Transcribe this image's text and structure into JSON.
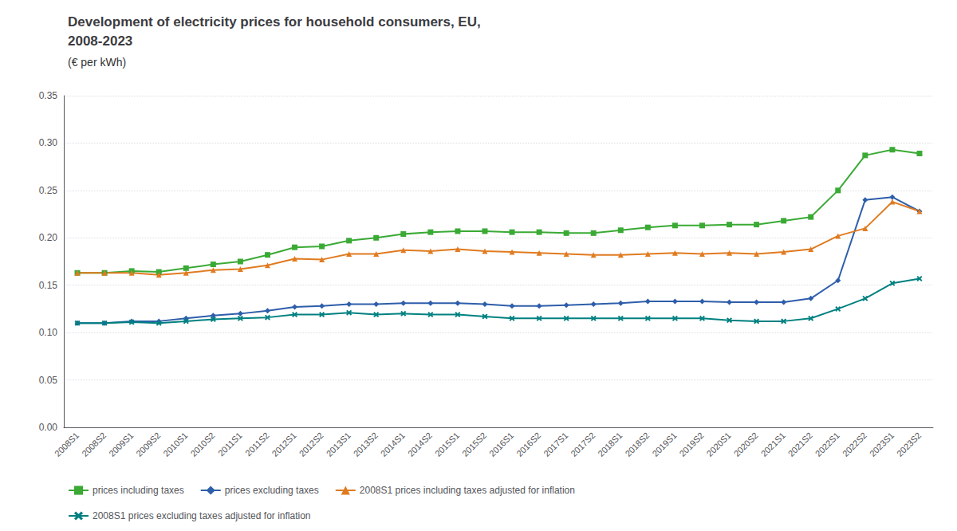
{
  "chart_data": {
    "type": "line",
    "title": "Development of electricity prices for household consumers, EU,\n2008-2023",
    "subtitle": "(€ per kWh)",
    "categories": [
      "2008S1",
      "2008S2",
      "2009S1",
      "2009S2",
      "2010S1",
      "2010S2",
      "2011S1",
      "2011S2",
      "2012S1",
      "2012S2",
      "2013S1",
      "2013S2",
      "2014S1",
      "2014S2",
      "2015S1",
      "2015S2",
      "2016S1",
      "2016S2",
      "2017S1",
      "2017S2",
      "2018S1",
      "2018S2",
      "2019S1",
      "2019S2",
      "2020S1",
      "2020S2",
      "2021S1",
      "2021S2",
      "2022S1",
      "2022S2",
      "2023S1",
      "2023S2"
    ],
    "series": [
      {
        "name": "prices including taxes",
        "color": "#3aaa35",
        "marker": "square",
        "values": [
          0.163,
          0.163,
          0.165,
          0.164,
          0.168,
          0.172,
          0.175,
          0.182,
          0.19,
          0.191,
          0.197,
          0.2,
          0.204,
          0.206,
          0.207,
          0.207,
          0.206,
          0.206,
          0.205,
          0.205,
          0.208,
          0.211,
          0.213,
          0.213,
          0.214,
          0.214,
          0.218,
          0.222,
          0.25,
          0.287,
          0.293,
          0.289
        ]
      },
      {
        "name": "prices excluding taxes",
        "color": "#2e5eaa",
        "marker": "diamond",
        "values": [
          0.11,
          0.11,
          0.112,
          0.112,
          0.115,
          0.118,
          0.12,
          0.123,
          0.127,
          0.128,
          0.13,
          0.13,
          0.131,
          0.131,
          0.131,
          0.13,
          0.128,
          0.128,
          0.129,
          0.13,
          0.131,
          0.133,
          0.133,
          0.133,
          0.132,
          0.132,
          0.132,
          0.136,
          0.155,
          0.24,
          0.243,
          0.228
        ]
      },
      {
        "name": "2008S1 prices including taxes adjusted for inflation",
        "color": "#e07b20",
        "marker": "triangle",
        "values": [
          0.163,
          0.163,
          0.163,
          0.161,
          0.163,
          0.166,
          0.167,
          0.171,
          0.178,
          0.177,
          0.183,
          0.183,
          0.187,
          0.186,
          0.188,
          0.186,
          0.185,
          0.184,
          0.183,
          0.182,
          0.182,
          0.183,
          0.184,
          0.183,
          0.184,
          0.183,
          0.185,
          0.188,
          0.202,
          0.21,
          0.238,
          0.228
        ]
      },
      {
        "name": "2008S1 prices excluding taxes adjusted for inflation",
        "color": "#008080",
        "marker": "x",
        "values": [
          0.11,
          0.11,
          0.111,
          0.11,
          0.112,
          0.114,
          0.115,
          0.116,
          0.119,
          0.119,
          0.121,
          0.119,
          0.12,
          0.119,
          0.119,
          0.117,
          0.115,
          0.115,
          0.115,
          0.115,
          0.115,
          0.115,
          0.115,
          0.115,
          0.113,
          0.112,
          0.112,
          0.115,
          0.125,
          0.136,
          0.152,
          0.157
        ]
      }
    ],
    "ylim": [
      0.0,
      0.35
    ],
    "yticks": [
      {
        "value": 0.0,
        "label": "0.00"
      },
      0.05,
      {
        "value": 0.1,
        "label": "0.10"
      },
      0.15,
      {
        "value": 0.2,
        "label": "0.20"
      },
      0.25,
      {
        "value": 0.3,
        "label": "0.30"
      },
      0.35
    ],
    "grid": true,
    "legend": "lower left"
  }
}
